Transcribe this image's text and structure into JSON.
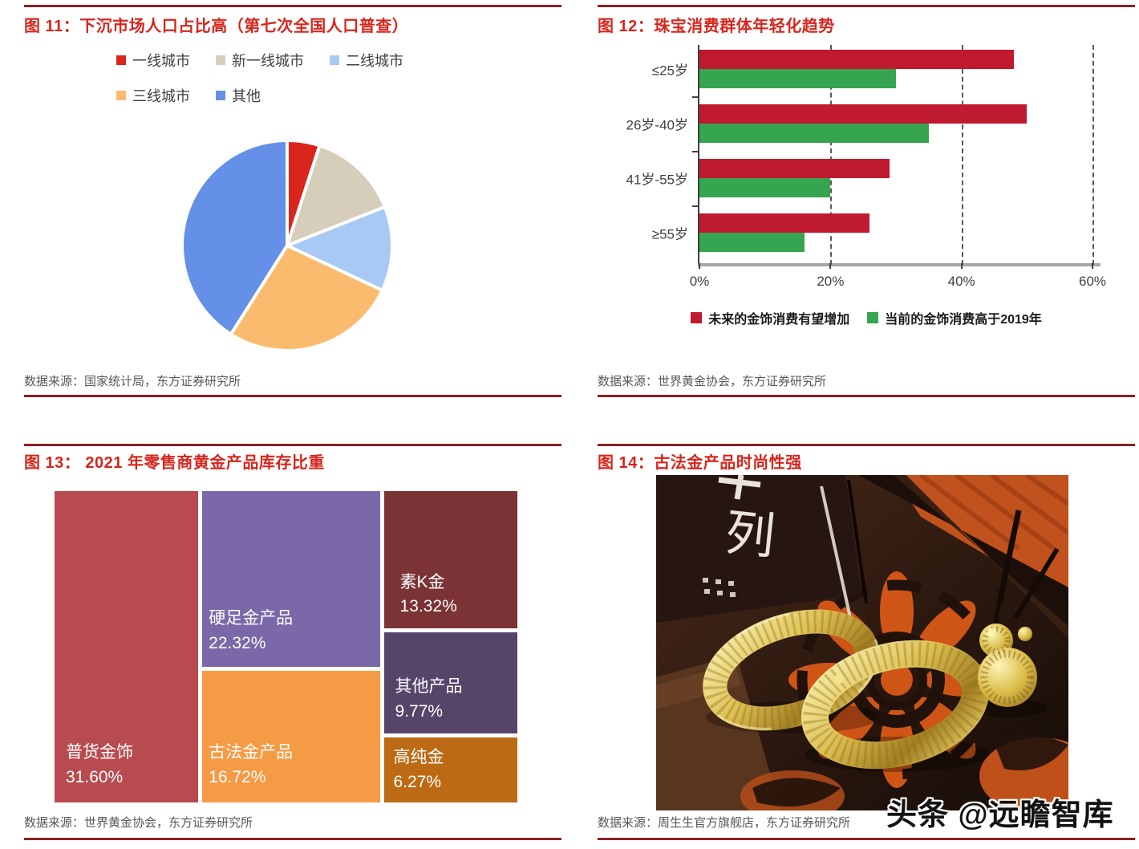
{
  "figures": {
    "fig11": {
      "title": "图 11：下沉市场人口占比高（第七次全国人口普查）",
      "source": "数据来源：国家统计局，东方证券研究所"
    },
    "fig12": {
      "title": "图 12：珠宝消费群体年轻化趋势",
      "source": "数据来源：世界黄金协会，东方证券研究所"
    },
    "fig13": {
      "title": "图 13： 2021 年零售商黄金产品库存比重",
      "source": "数据来源：世界黄金协会，东方证券研究所"
    },
    "fig14": {
      "title": "图 14：古法金产品时尚性强",
      "source": "数据来源：周生生官方旗舰店，东方证券研究所",
      "photo": {
        "box_label": "列"
      }
    }
  },
  "watermark": {
    "text": "头条 @远瞻智库"
  },
  "chart_data": [
    {
      "type": "pie",
      "title": "下沉市场人口占比高（第七次全国人口普查）",
      "categories": [
        "一线城市",
        "新一线城市",
        "二线城市",
        "三线城市",
        "其他"
      ],
      "values": [
        5,
        14,
        13,
        27,
        41
      ],
      "units": "%",
      "colors": [
        "#da251d",
        "#d6ceba",
        "#a7c9f3",
        "#fbbb6e",
        "#6590e7"
      ],
      "legend_position": "top",
      "start_angle": 0
    },
    {
      "type": "bar",
      "orientation": "horizontal",
      "title": "珠宝消费群体年轻化趋势",
      "categories": [
        "≤25岁",
        "26岁-40岁",
        "41岁-55岁",
        "≥55岁"
      ],
      "series": [
        {
          "name": "未来的金饰消费有望增加",
          "color": "#c01a31",
          "values": [
            48,
            50,
            29,
            26
          ]
        },
        {
          "name": "当前的金饰消费高于2019年",
          "color": "#35a64f",
          "values": [
            30,
            35,
            20,
            16
          ]
        }
      ],
      "xlim": [
        0,
        60
      ],
      "xmax": 60,
      "xtick_values": [
        0,
        20,
        40,
        60
      ],
      "xticks": [
        "0%",
        "20%",
        "40%",
        "60%"
      ],
      "grid": "dashed-vertical",
      "legend_position": "bottom"
    },
    {
      "type": "treemap",
      "title": "2021 年零售商黄金产品库存比重",
      "items": [
        {
          "label": "普货金饰",
          "value": 31.6,
          "value_label": "31.60%",
          "color": "#b84b50"
        },
        {
          "label": "硬足金产品",
          "value": 22.32,
          "value_label": "22.32%",
          "color": "#7a68a8"
        },
        {
          "label": "古法金产品",
          "value": 16.72,
          "value_label": "16.72%",
          "color": "#f59b45"
        },
        {
          "label": "素K金",
          "value": 13.32,
          "value_label": "13.32%",
          "color": "#7b3335"
        },
        {
          "label": "其他产品",
          "value": 9.77,
          "value_label": "9.77%",
          "color": "#564569"
        },
        {
          "label": "高纯金",
          "value": 6.27,
          "value_label": "6.27%",
          "color": "#bd6a14"
        }
      ]
    }
  ]
}
